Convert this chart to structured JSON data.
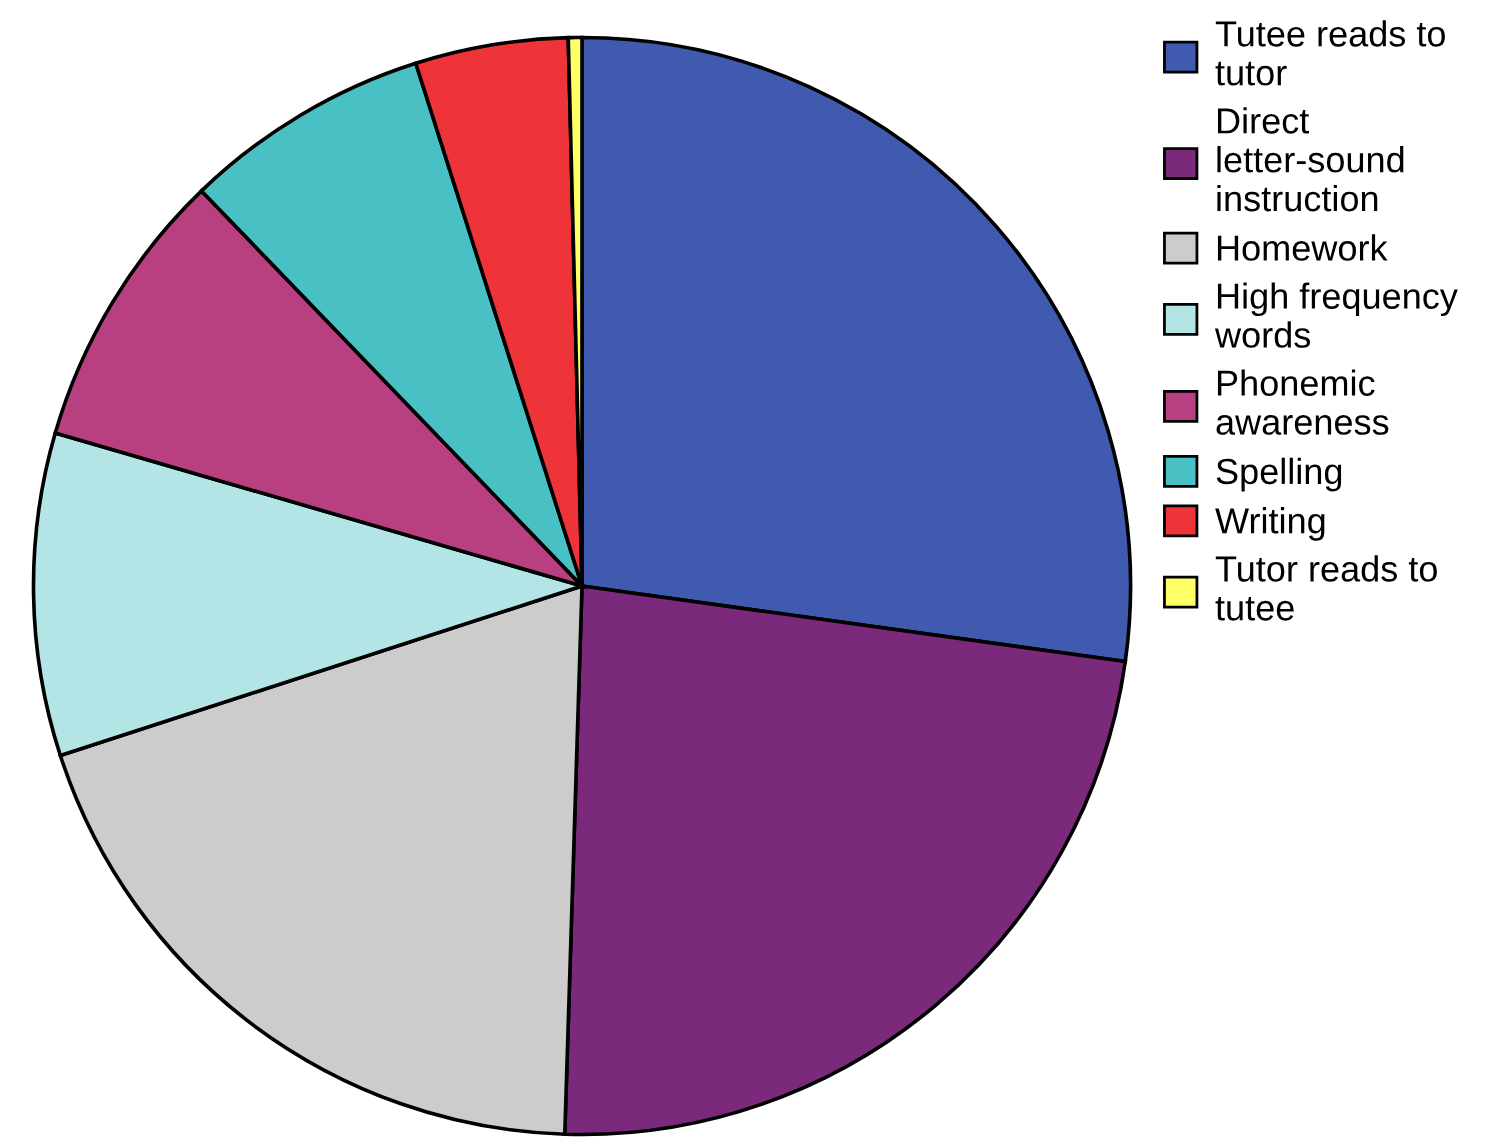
{
  "chart_data": {
    "type": "pie",
    "categories": [
      "Tutee reads to tutor",
      "Direct letter-sound instruction",
      "Homework",
      "High frequency words",
      "Phonemic awareness",
      "Spelling",
      "Writing",
      "Tutor reads to tutee"
    ],
    "values": [
      27.2,
      23.3,
      19.5,
      9.5,
      8.3,
      7.3,
      4.5,
      0.4
    ],
    "colors": [
      "#3f5aae",
      "#7b2a7b",
      "#cccccc",
      "#b3e4e6",
      "#b84080",
      "#48c0c4",
      "#ee3438",
      "#ffff66"
    ],
    "legend": "right"
  }
}
